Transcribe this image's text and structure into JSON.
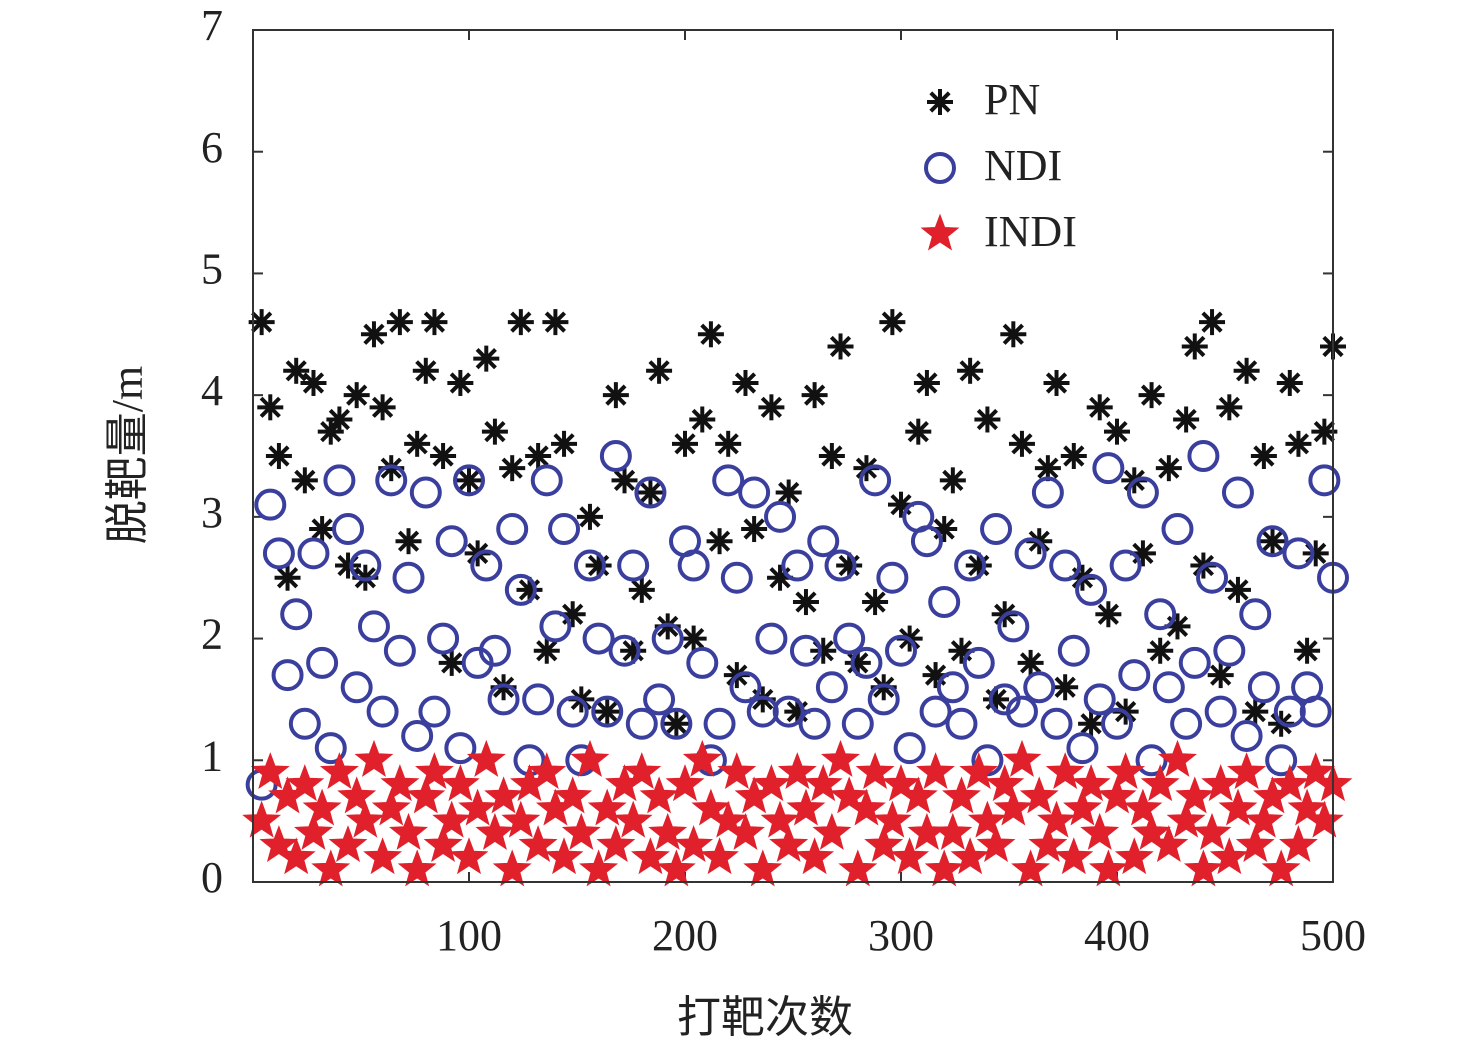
{
  "chart_data": {
    "type": "scatter",
    "x_label": "打靶次数",
    "y_label": "脱靶量/m",
    "xlim": [
      0,
      500
    ],
    "ylim": [
      0,
      7
    ],
    "xticks": [
      100,
      200,
      300,
      400,
      500
    ],
    "yticks": [
      0,
      1,
      2,
      3,
      4,
      5,
      6,
      7
    ],
    "legend": "upper right",
    "x": [
      4,
      8,
      12,
      16,
      20,
      24,
      28,
      32,
      36,
      40,
      44,
      48,
      52,
      56,
      60,
      64,
      68,
      72,
      76,
      80,
      84,
      88,
      92,
      96,
      100,
      104,
      108,
      112,
      116,
      120,
      124,
      128,
      132,
      136,
      140,
      144,
      148,
      152,
      156,
      160,
      164,
      168,
      172,
      176,
      180,
      184,
      188,
      192,
      196,
      200,
      204,
      208,
      212,
      216,
      220,
      224,
      228,
      232,
      236,
      240,
      244,
      248,
      252,
      256,
      260,
      264,
      268,
      272,
      276,
      280,
      284,
      288,
      292,
      296,
      300,
      304,
      308,
      312,
      316,
      320,
      324,
      328,
      332,
      336,
      340,
      344,
      348,
      352,
      356,
      360,
      364,
      368,
      372,
      376,
      380,
      384,
      388,
      392,
      396,
      400,
      404,
      408,
      412,
      416,
      420,
      424,
      428,
      432,
      436,
      440,
      444,
      448,
      452,
      456,
      460,
      464,
      468,
      472,
      476,
      480,
      484,
      488,
      492,
      496,
      500
    ],
    "series": [
      {
        "name": "PN",
        "color": "#111111",
        "marker": "asterisk",
        "values": [
          4.6,
          3.9,
          3.5,
          2.5,
          4.2,
          3.3,
          4.1,
          2.9,
          3.7,
          3.8,
          2.6,
          4.0,
          2.5,
          4.5,
          3.9,
          3.4,
          4.6,
          2.8,
          3.6,
          4.2,
          4.6,
          3.5,
          1.8,
          4.1,
          3.3,
          2.7,
          4.3,
          3.7,
          1.6,
          3.4,
          4.6,
          2.4,
          3.5,
          1.9,
          4.6,
          3.6,
          2.2,
          1.5,
          3.0,
          2.6,
          1.4,
          4.0,
          3.3,
          1.9,
          2.4,
          3.2,
          4.2,
          2.1,
          1.3,
          3.6,
          2.0,
          3.8,
          4.5,
          2.8,
          3.6,
          1.7,
          4.1,
          2.9,
          1.5,
          3.9,
          2.5,
          3.2,
          1.4,
          2.3,
          4.0,
          1.9,
          3.5,
          4.4,
          2.6,
          1.8,
          3.4,
          2.3,
          1.6,
          4.6,
          3.1,
          2.0,
          3.7,
          4.1,
          1.7,
          2.9,
          3.3,
          1.9,
          4.2,
          2.6,
          3.8,
          1.5,
          2.2,
          4.5,
          3.6,
          1.8,
          2.8,
          3.4,
          4.1,
          1.6,
          3.5,
          2.5,
          1.3,
          3.9,
          2.2,
          3.7,
          1.4,
          3.3,
          2.7,
          4.0,
          1.9,
          3.4,
          2.1,
          3.8,
          4.4,
          2.6,
          4.6,
          1.7,
          3.9,
          2.4,
          4.2,
          1.4,
          3.5,
          2.8,
          1.3,
          4.1,
          3.6,
          1.9,
          2.7,
          3.7,
          4.4
        ]
      },
      {
        "name": "NDI",
        "color": "#3a3f9e",
        "marker": "circle",
        "values": [
          0.8,
          3.1,
          2.7,
          1.7,
          2.2,
          1.3,
          2.7,
          1.8,
          1.1,
          3.3,
          2.9,
          1.6,
          2.6,
          2.1,
          1.4,
          3.3,
          1.9,
          2.5,
          1.2,
          3.2,
          1.4,
          2.0,
          2.8,
          1.1,
          3.3,
          1.8,
          2.6,
          1.9,
          1.5,
          2.9,
          2.4,
          1.0,
          1.5,
          3.3,
          2.1,
          2.9,
          1.4,
          1.0,
          2.6,
          2.0,
          1.4,
          3.5,
          1.9,
          2.6,
          1.3,
          3.2,
          1.5,
          2.0,
          1.3,
          2.8,
          2.6,
          1.8,
          1.0,
          1.3,
          3.3,
          2.5,
          1.6,
          3.2,
          1.4,
          2.0,
          3.0,
          1.4,
          2.6,
          1.9,
          1.3,
          2.8,
          1.6,
          2.6,
          2.0,
          1.3,
          1.8,
          3.3,
          1.5,
          2.5,
          1.9,
          1.1,
          3.0,
          2.8,
          1.4,
          2.3,
          1.6,
          1.3,
          2.6,
          1.8,
          1.0,
          2.9,
          1.5,
          2.1,
          1.4,
          2.7,
          1.6,
          3.2,
          1.3,
          2.6,
          1.9,
          1.1,
          2.4,
          1.5,
          3.4,
          1.3,
          2.6,
          1.7,
          3.2,
          1.0,
          2.2,
          1.6,
          2.9,
          1.3,
          1.8,
          3.5,
          2.5,
          1.4,
          1.9,
          3.2,
          1.2,
          2.2,
          1.6,
          2.8,
          1.0,
          1.4,
          2.7,
          1.6,
          1.4,
          3.3,
          2.5
        ]
      },
      {
        "name": "INDI",
        "color": "#e0202a",
        "marker": "star",
        "values": [
          0.5,
          0.9,
          0.3,
          0.7,
          0.2,
          0.8,
          0.4,
          0.6,
          0.1,
          0.9,
          0.3,
          0.7,
          0.5,
          1.0,
          0.2,
          0.6,
          0.8,
          0.4,
          0.1,
          0.7,
          0.9,
          0.3,
          0.5,
          0.8,
          0.2,
          0.6,
          1.0,
          0.4,
          0.7,
          0.1,
          0.5,
          0.8,
          0.3,
          0.9,
          0.6,
          0.2,
          0.7,
          0.4,
          1.0,
          0.1,
          0.6,
          0.3,
          0.8,
          0.5,
          0.9,
          0.2,
          0.7,
          0.4,
          0.1,
          0.8,
          0.3,
          1.0,
          0.6,
          0.2,
          0.5,
          0.9,
          0.4,
          0.7,
          0.1,
          0.8,
          0.5,
          0.3,
          0.9,
          0.6,
          0.2,
          0.8,
          0.4,
          1.0,
          0.7,
          0.1,
          0.6,
          0.9,
          0.3,
          0.5,
          0.8,
          0.2,
          0.7,
          0.4,
          0.9,
          0.1,
          0.4,
          0.7,
          0.2,
          0.9,
          0.5,
          0.3,
          0.8,
          0.6,
          1.0,
          0.1,
          0.7,
          0.3,
          0.5,
          0.9,
          0.2,
          0.6,
          0.8,
          0.4,
          0.1,
          0.7,
          0.9,
          0.2,
          0.6,
          0.4,
          0.8,
          0.3,
          1.0,
          0.5,
          0.7,
          0.1,
          0.4,
          0.8,
          0.2,
          0.6,
          0.9,
          0.3,
          0.5,
          0.7,
          0.1,
          0.8,
          0.3,
          0.6,
          0.9,
          0.5,
          0.8
        ]
      }
    ]
  }
}
